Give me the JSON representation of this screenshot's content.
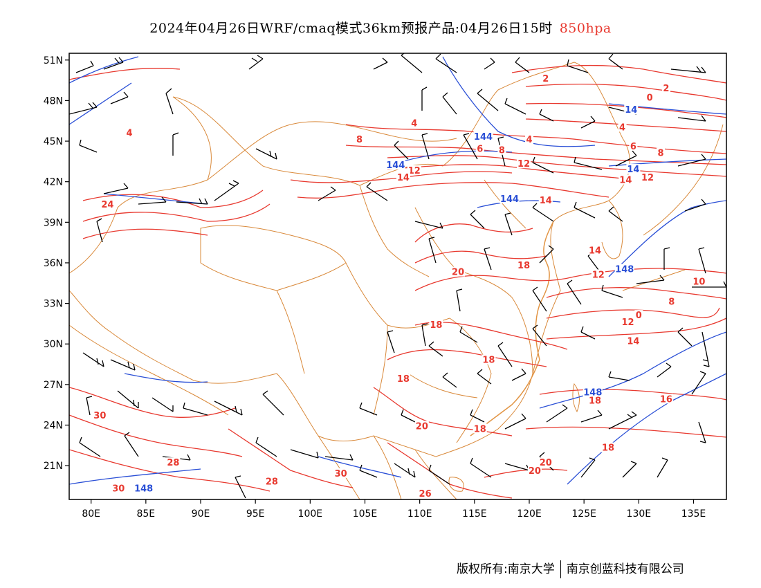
{
  "title": {
    "main": "2024年04月26日WRF/cmaq模式36km预报产品:04月26日15时",
    "level": "850hpa",
    "level_color": "#e8392f"
  },
  "map": {
    "lon_range": [
      78,
      138
    ],
    "lat_range": [
      18.5,
      51.5
    ],
    "x_ticks": [
      "80E",
      "85E",
      "90E",
      "95E",
      "100E",
      "105E",
      "110E",
      "115E",
      "120E",
      "125E",
      "130E",
      "135E"
    ],
    "x_tick_values": [
      80,
      85,
      90,
      95,
      100,
      105,
      110,
      115,
      120,
      125,
      130,
      135
    ],
    "y_ticks": [
      "51N",
      "48N",
      "45N",
      "42N",
      "39N",
      "36N",
      "33N",
      "30N",
      "27N",
      "24N",
      "21N"
    ],
    "y_tick_values": [
      51,
      48,
      45,
      42,
      39,
      36,
      33,
      30,
      27,
      24,
      21
    ],
    "colors": {
      "temperature_contour": "#e8392f",
      "height_contour": "#2a4fd6",
      "boundary": "#d9893a",
      "wind_barb": "#000000"
    }
  },
  "temperature_labels": [
    {
      "text": "2",
      "lon": 121.5,
      "lat": 49.5
    },
    {
      "text": "2",
      "lon": 132.5,
      "lat": 48.8
    },
    {
      "text": "0",
      "lon": 131,
      "lat": 48.1
    },
    {
      "text": "4",
      "lon": 83.5,
      "lat": 45.5
    },
    {
      "text": "4",
      "lon": 109.5,
      "lat": 46.2
    },
    {
      "text": "4",
      "lon": 120,
      "lat": 45
    },
    {
      "text": "4",
      "lon": 128.5,
      "lat": 45.9
    },
    {
      "text": "8",
      "lon": 104.5,
      "lat": 45
    },
    {
      "text": "6",
      "lon": 115.5,
      "lat": 44.3
    },
    {
      "text": "8",
      "lon": 117.5,
      "lat": 44.2
    },
    {
      "text": "12",
      "lon": 119.5,
      "lat": 43.2
    },
    {
      "text": "6",
      "lon": 129.5,
      "lat": 44.5
    },
    {
      "text": "8",
      "lon": 132,
      "lat": 44
    },
    {
      "text": "12",
      "lon": 109.5,
      "lat": 42.7
    },
    {
      "text": "14",
      "lon": 108.5,
      "lat": 42.2
    },
    {
      "text": "14",
      "lon": 128.8,
      "lat": 42
    },
    {
      "text": "12",
      "lon": 130.8,
      "lat": 42.2
    },
    {
      "text": "24",
      "lon": 81.5,
      "lat": 40.2
    },
    {
      "text": "14",
      "lon": 121.5,
      "lat": 40.5
    },
    {
      "text": "14",
      "lon": 126,
      "lat": 36.8
    },
    {
      "text": "20",
      "lon": 113.5,
      "lat": 35.2
    },
    {
      "text": "18",
      "lon": 119.5,
      "lat": 35.7
    },
    {
      "text": "12",
      "lon": 126.3,
      "lat": 35
    },
    {
      "text": "10",
      "lon": 135.5,
      "lat": 34.5
    },
    {
      "text": "8",
      "lon": 133,
      "lat": 33
    },
    {
      "text": "0",
      "lon": 130,
      "lat": 32
    },
    {
      "text": "12",
      "lon": 129,
      "lat": 31.5
    },
    {
      "text": "18",
      "lon": 111.5,
      "lat": 31.3
    },
    {
      "text": "14",
      "lon": 129.5,
      "lat": 30.1
    },
    {
      "text": "18",
      "lon": 116.3,
      "lat": 28.7
    },
    {
      "text": "18",
      "lon": 108.5,
      "lat": 27.3
    },
    {
      "text": "18",
      "lon": 126,
      "lat": 25.7
    },
    {
      "text": "16",
      "lon": 132.5,
      "lat": 25.8
    },
    {
      "text": "30",
      "lon": 80.8,
      "lat": 24.6
    },
    {
      "text": "20",
      "lon": 110.2,
      "lat": 23.8
    },
    {
      "text": "18",
      "lon": 115.5,
      "lat": 23.6
    },
    {
      "text": "18",
      "lon": 127.2,
      "lat": 22.2
    },
    {
      "text": "28",
      "lon": 87.5,
      "lat": 21.1
    },
    {
      "text": "20",
      "lon": 121.5,
      "lat": 21.1
    },
    {
      "text": "20",
      "lon": 120.5,
      "lat": 20.5
    },
    {
      "text": "28",
      "lon": 96.5,
      "lat": 19.7
    },
    {
      "text": "30",
      "lon": 102.8,
      "lat": 20.3
    },
    {
      "text": "30",
      "lon": 82.5,
      "lat": 19.2
    },
    {
      "text": "26",
      "lon": 110.5,
      "lat": 18.8
    }
  ],
  "height_labels": [
    {
      "text": "144",
      "lon": 115.8,
      "lat": 45.2
    },
    {
      "text": "144",
      "lon": 107.8,
      "lat": 43.1
    },
    {
      "text": "144",
      "lon": 118.2,
      "lat": 40.6
    },
    {
      "text": "14",
      "lon": 129.3,
      "lat": 47.2
    },
    {
      "text": "14",
      "lon": 129.5,
      "lat": 42.8
    },
    {
      "text": "148",
      "lon": 128.7,
      "lat": 35.4
    },
    {
      "text": "148",
      "lon": 125.8,
      "lat": 26.3
    },
    {
      "text": "148",
      "lon": 84.8,
      "lat": 19.2
    }
  ],
  "footer": {
    "left": "版权所有:南京大学",
    "right": "南京创蓝科技有限公司"
  }
}
